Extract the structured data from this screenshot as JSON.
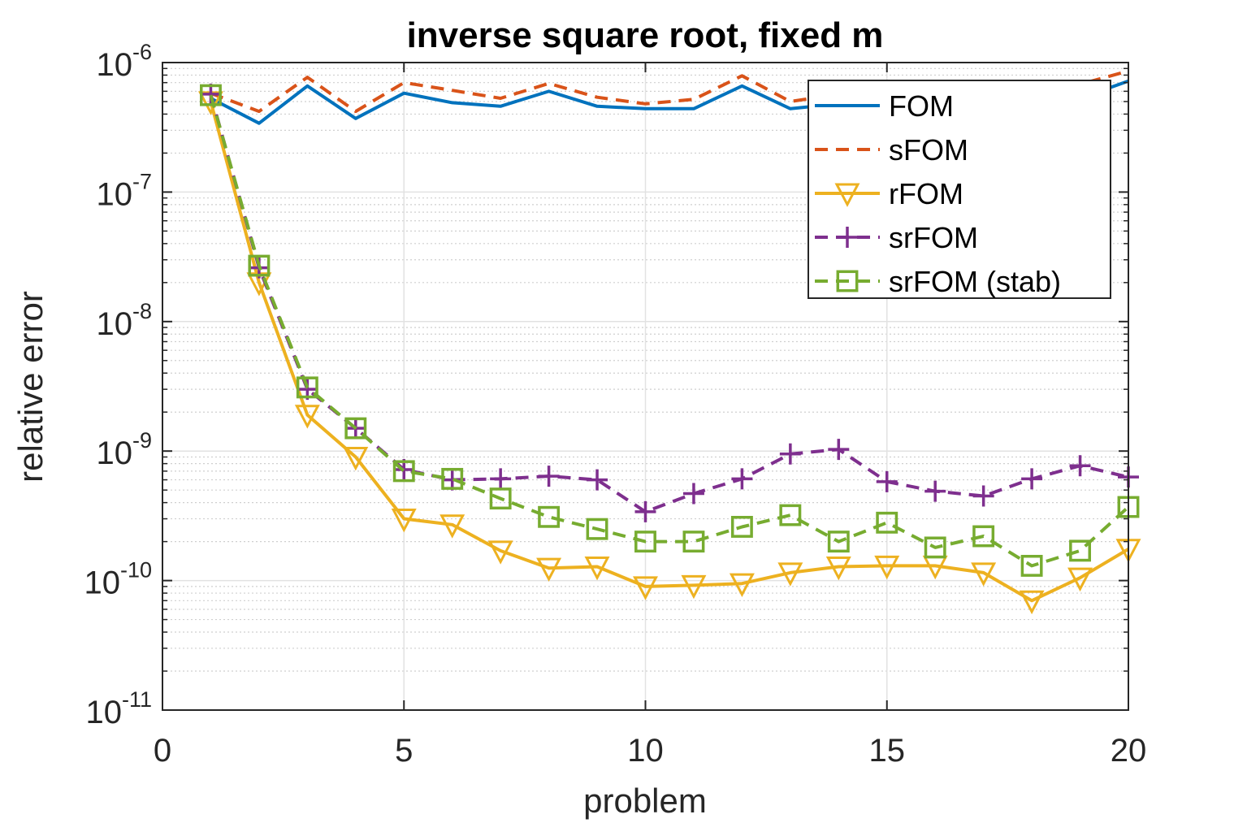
{
  "chart_data": {
    "type": "line",
    "title": "inverse square root, fixed m",
    "xlabel": "problem",
    "ylabel": "relative error",
    "xlim": [
      0,
      20
    ],
    "ylim": [
      1e-11,
      1e-06
    ],
    "yscale": "log",
    "xticks": [
      0,
      5,
      10,
      15,
      20
    ],
    "xtick_labels": [
      "0",
      "5",
      "10",
      "15",
      "20"
    ],
    "ytick_labels": [
      {
        "base": "10",
        "exp": "-11",
        "value": 1e-11
      },
      {
        "base": "10",
        "exp": "-10",
        "value": 1e-10
      },
      {
        "base": "10",
        "exp": "-9",
        "value": 1e-09
      },
      {
        "base": "10",
        "exp": "-8",
        "value": 1e-08
      },
      {
        "base": "10",
        "exp": "-7",
        "value": 1e-07
      },
      {
        "base": "10",
        "exp": "-6",
        "value": 1e-06
      }
    ],
    "grid": true,
    "legend_position": "top-right",
    "x": [
      1,
      2,
      3,
      4,
      5,
      6,
      7,
      8,
      9,
      10,
      11,
      12,
      13,
      14,
      15,
      16,
      17,
      18,
      19,
      20
    ],
    "series": [
      {
        "name": "FOM",
        "color": "#0072BD",
        "dash": "solid",
        "marker": "none",
        "values": [
          5.3e-07,
          3.4e-07,
          6.6e-07,
          3.7e-07,
          5.8e-07,
          4.9e-07,
          4.6e-07,
          6e-07,
          4.6e-07,
          4.4e-07,
          4.4e-07,
          6.6e-07,
          4.4e-07,
          4.8e-07,
          5e-07,
          5e-07,
          5.3e-07,
          5e-07,
          5.3e-07,
          7.2e-07
        ]
      },
      {
        "name": "sFOM",
        "color": "#D95319",
        "dash": "dashed",
        "marker": "none",
        "values": [
          5.8e-07,
          4.2e-07,
          7.7e-07,
          4.2e-07,
          7e-07,
          6.1e-07,
          5.3e-07,
          6.9e-07,
          5.4e-07,
          4.8e-07,
          5.2e-07,
          7.9e-07,
          5e-07,
          5.7e-07,
          6.2e-07,
          6.1e-07,
          6.4e-07,
          6.4e-07,
          6.8e-07,
          8.6e-07
        ]
      },
      {
        "name": "rFOM",
        "color": "#EDB120",
        "dash": "solid",
        "marker": "triangle-down",
        "values": [
          5e-07,
          2e-08,
          1.9e-09,
          9e-10,
          3e-10,
          2.7e-10,
          1.7e-10,
          1.25e-10,
          1.28e-10,
          9e-11,
          9.2e-11,
          9.5e-11,
          1.15e-10,
          1.28e-10,
          1.3e-10,
          1.3e-10,
          1.15e-10,
          7e-11,
          1.05e-10,
          1.75e-10
        ]
      },
      {
        "name": "srFOM",
        "color": "#7E2F8E",
        "dash": "dashed",
        "marker": "plus",
        "values": [
          5.7e-07,
          2.6e-08,
          3e-09,
          1.5e-09,
          7.2e-10,
          6e-10,
          6.1e-10,
          6.4e-10,
          6e-10,
          3.4e-10,
          4.7e-10,
          6.1e-10,
          9.5e-10,
          1.03e-09,
          5.8e-10,
          4.9e-10,
          4.5e-10,
          6.1e-10,
          7.7e-10,
          6.3e-10
        ]
      },
      {
        "name": "srFOM (stab)",
        "color": "#77AC30",
        "dash": "dashed",
        "marker": "square",
        "values": [
          5.6e-07,
          2.7e-08,
          3.1e-09,
          1.5e-09,
          7e-10,
          6.1e-10,
          4.3e-10,
          3.1e-10,
          2.5e-10,
          2e-10,
          2e-10,
          2.6e-10,
          3.2e-10,
          2e-10,
          2.8e-10,
          1.8e-10,
          2.2e-10,
          1.3e-10,
          1.7e-10,
          3.7e-10
        ]
      }
    ]
  }
}
